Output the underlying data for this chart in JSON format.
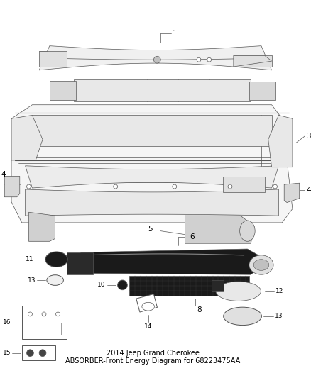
{
  "title": "2014 Jeep Grand Cherokee",
  "subtitle": "ABSORBER-Front Energy",
  "part_number": "68223475AA",
  "bg_color": "#ffffff",
  "line_color": "#555555",
  "text_color": "#000000",
  "fig_width": 4.38,
  "fig_height": 5.33,
  "dpi": 100
}
